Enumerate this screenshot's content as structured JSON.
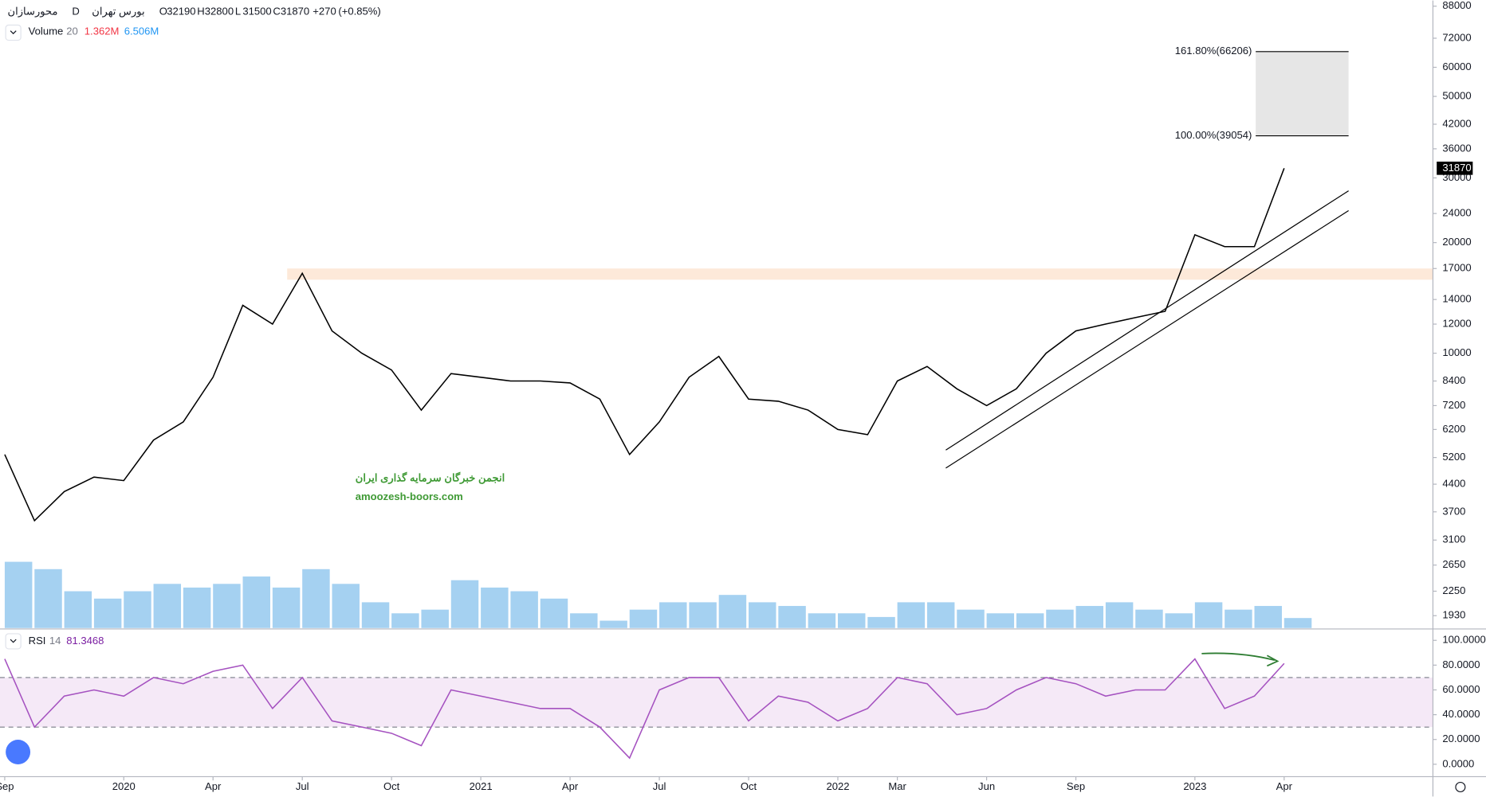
{
  "header": {
    "symbol": "محورسازان",
    "interval": "D",
    "exchange": "بورس تهران",
    "ohlc": [
      {
        "label": "O",
        "value": 32190
      },
      {
        "label": "H",
        "value": 32800
      },
      {
        "label": "L",
        "value": 31500
      },
      {
        "label": "C",
        "value": 31870
      }
    ],
    "change": {
      "value": 270,
      "label": "+270"
    },
    "change_percent": {
      "value": 0.85,
      "label": "(+0.85%)"
    }
  },
  "watermark": {
    "title": "انجمن خبرگان سرمایه گذاری ایران",
    "url": "amoozesh-boors.com"
  },
  "chart_data": [
    {
      "type": "line",
      "log": true,
      "color": "#000000",
      "x": [
        "2019-09",
        "2019-10",
        "2019-11",
        "2019-12",
        "2020-01",
        "2020-02",
        "2020-03",
        "2020-04",
        "2020-05",
        "2020-06",
        "2020-07",
        "2020-08",
        "2020-09",
        "2020-10",
        "2020-11",
        "2020-12",
        "2021-01",
        "2021-02",
        "2021-03",
        "2021-04",
        "2021-05",
        "2021-06",
        "2021-07",
        "2021-08",
        "2021-09",
        "2021-10",
        "2021-11",
        "2021-12",
        "2022-01",
        "2022-02",
        "2022-03",
        "2022-04",
        "2022-05",
        "2022-06",
        "2022-07",
        "2022-08",
        "2022-09",
        "2022-10",
        "2022-11",
        "2022-12",
        "2023-01",
        "2023-02",
        "2023-03",
        "2023-04"
      ],
      "values": [
        5300,
        3500,
        4200,
        4600,
        4500,
        5800,
        6500,
        8600,
        13500,
        12000,
        16500,
        11500,
        10000,
        9000,
        7000,
        8800,
        8600,
        8400,
        8400,
        8300,
        7500,
        5300,
        6500,
        8600,
        9800,
        7500,
        7400,
        7000,
        6200,
        6000,
        8400,
        9200,
        8000,
        7200,
        8000,
        10000,
        11500,
        12000,
        12500,
        13000,
        21000,
        19500,
        19500,
        31870
      ],
      "xlim": [
        "2019-09",
        "2023-09"
      ],
      "xticks": [
        {
          "value": "2019-09",
          "label": "Sep"
        },
        {
          "value": "2020-01",
          "label": "2020"
        },
        {
          "value": "2020-04",
          "label": "Apr"
        },
        {
          "value": "2020-07",
          "label": "Jul"
        },
        {
          "value": "2020-10",
          "label": "Oct"
        },
        {
          "value": "2021-01",
          "label": "2021"
        },
        {
          "value": "2021-04",
          "label": "Apr"
        },
        {
          "value": "2021-07",
          "label": "Jul"
        },
        {
          "value": "2021-10",
          "label": "Oct"
        },
        {
          "value": "2022-01",
          "label": "2022"
        },
        {
          "value": "2022-03",
          "label": "Mar"
        },
        {
          "value": "2022-06",
          "label": "Jun"
        },
        {
          "value": "2022-09",
          "label": "Sep"
        },
        {
          "value": "2023-01",
          "label": "2023"
        },
        {
          "value": "2023-04",
          "label": "Apr"
        }
      ],
      "ylim": [
        1786,
        91200
      ],
      "yticks": [
        88000,
        72000,
        60000,
        50000,
        42000,
        36000,
        30000,
        24000,
        20000,
        17000,
        14000,
        12000,
        10000,
        8400,
        7200,
        6200,
        5200,
        4400,
        3700,
        3100,
        2650,
        2250,
        1930
      ],
      "zone": {
        "range": [
          15850,
          17000
        ],
        "color": "#fde9d9"
      },
      "fib": [
        {
          "value": 66206,
          "label": "161.80%(66206)"
        },
        {
          "value": 39054,
          "label": "100.00%(39054)"
        }
      ]
    },
    {
      "type": "bar",
      "name": "Volume",
      "length": 20,
      "color": "#8ec5ee",
      "x": [
        "2019-09",
        "2019-10",
        "2019-11",
        "2019-12",
        "2020-01",
        "2020-02",
        "2020-03",
        "2020-04",
        "2020-05",
        "2020-06",
        "2020-07",
        "2020-08",
        "2020-09",
        "2020-10",
        "2020-11",
        "2020-12",
        "2021-01",
        "2021-02",
        "2021-03",
        "2021-04",
        "2021-05",
        "2021-06",
        "2021-07",
        "2021-08",
        "2021-09",
        "2021-10",
        "2021-11",
        "2021-12",
        "2022-01",
        "2022-02",
        "2022-03",
        "2022-04",
        "2022-05",
        "2022-06",
        "2022-07",
        "2022-08",
        "2022-09",
        "2022-10",
        "2022-11",
        "2022-12",
        "2023-01",
        "2023-02",
        "2023-03",
        "2023-04"
      ],
      "values": [
        9000000,
        8000000,
        5000000,
        4000000,
        5000000,
        6000000,
        5500000,
        6000000,
        7000000,
        5500000,
        8000000,
        6000000,
        3500000,
        2000000,
        2500000,
        6500000,
        5500000,
        5000000,
        4000000,
        2000000,
        1000000,
        2500000,
        3500000,
        3500000,
        4500000,
        3500000,
        3000000,
        2000000,
        2000000,
        1500000,
        3500000,
        3500000,
        2500000,
        2000000,
        2000000,
        2500000,
        3000000,
        3500000,
        2500000,
        2000000,
        3500000,
        2500000,
        3000000,
        1362000
      ],
      "legend_values": [
        {
          "value": 1362000,
          "label": "1.362M",
          "color": "#f23645"
        },
        {
          "value": 6506000,
          "label": "6.506M",
          "color": "#2196f3"
        }
      ]
    },
    {
      "type": "line",
      "name": "RSI",
      "length": 14,
      "color": "#a552c0",
      "x": [
        "2019-09",
        "2019-10",
        "2019-11",
        "2019-12",
        "2020-01",
        "2020-02",
        "2020-03",
        "2020-04",
        "2020-05",
        "2020-06",
        "2020-07",
        "2020-08",
        "2020-09",
        "2020-10",
        "2020-11",
        "2020-12",
        "2021-01",
        "2021-02",
        "2021-03",
        "2021-04",
        "2021-05",
        "2021-06",
        "2021-07",
        "2021-08",
        "2021-09",
        "2021-10",
        "2021-11",
        "2021-12",
        "2022-01",
        "2022-02",
        "2022-03",
        "2022-04",
        "2022-05",
        "2022-06",
        "2022-07",
        "2022-08",
        "2022-09",
        "2022-10",
        "2022-11",
        "2022-12",
        "2023-01",
        "2023-02",
        "2023-03",
        "2023-04"
      ],
      "values": [
        85,
        30,
        55,
        60,
        55,
        70,
        65,
        75,
        80,
        45,
        70,
        35,
        30,
        25,
        15,
        60,
        55,
        50,
        45,
        45,
        30,
        5,
        60,
        70,
        70,
        35,
        55,
        50,
        35,
        45,
        70,
        65,
        40,
        45,
        60,
        70,
        65,
        55,
        60,
        60,
        85,
        45,
        55,
        81.3468
      ],
      "ylim": [
        -10,
        108.4
      ],
      "yticks": [
        {
          "value": 100,
          "label": "100.0000"
        },
        {
          "value": 80,
          "label": "80.0000"
        },
        {
          "value": 60,
          "label": "60.0000"
        },
        {
          "value": 40,
          "label": "40.0000"
        },
        {
          "value": 20,
          "label": "20.0000"
        },
        {
          "value": 0,
          "label": "0.0000"
        }
      ],
      "bands": [
        30,
        70
      ]
    }
  ]
}
